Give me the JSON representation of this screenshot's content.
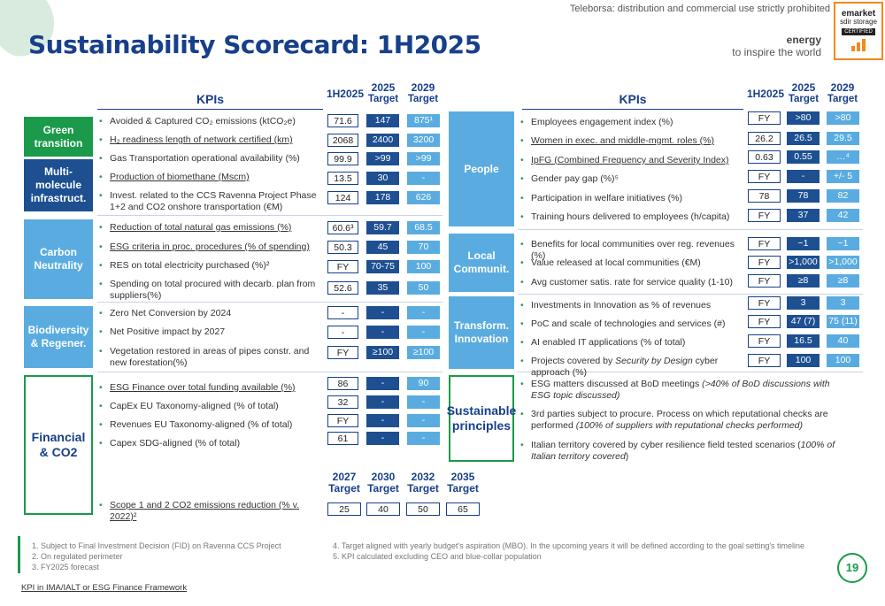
{
  "header": {
    "title": "Sustainability Scorecard: 1H2025",
    "notice": "Teleborsa: distribution and commercial use strictly prohibited",
    "brand_top": "energy",
    "brand_bottom": "to inspire the world",
    "badge": {
      "line1": "emarket",
      "line2": "sdir storage",
      "line3": "CERTIFIED"
    }
  },
  "columns": {
    "kpis": "KPIs",
    "c1": "1H2025",
    "c2a": "2025",
    "c2b": "Target",
    "c3a": "2029",
    "c3b": "Target"
  },
  "left": {
    "green_transition": {
      "label": "Green transition",
      "rows": [
        {
          "kpi": "Avoided & Captured CO₂ emissions (ktCO₂e)",
          "v1": "71.6",
          "v2": "147",
          "v3": "875¹"
        },
        {
          "kpi": "H₂ readiness length of network certified (km)",
          "v1": "2068",
          "v2": "2400",
          "v3": "3200"
        },
        {
          "kpi": "Gas Transportation operational availability (%)",
          "v1": "99.9",
          "v2": ">99",
          "v3": ">99"
        }
      ]
    },
    "multi_molecule": {
      "label": "Multi-molecule infrastruct.",
      "rows": [
        {
          "kpi": "Production of biomethane (Mscm)",
          "v1": "13.5",
          "v2": "30",
          "v3": "-"
        },
        {
          "kpi": "Invest. related to the CCS Ravenna Project Phase 1+2 and CO2 onshore transportation (€M)",
          "v1": "124",
          "v2": "178",
          "v3": "626"
        }
      ]
    },
    "carbon_neutrality": {
      "label": "Carbon Neutrality",
      "rows": [
        {
          "kpi": "Reduction of total natural gas emissions (%)",
          "v1": "60.6³",
          "v2": "59.7",
          "v3": "68.5"
        },
        {
          "kpi": "ESG criteria in proc. procedures (% of spending)",
          "v1": "50.3",
          "v2": "45",
          "v3": "70"
        },
        {
          "kpi": "RES on total electricity purchased (%)²",
          "v1": "FY",
          "v2": "70-75",
          "v3": "100"
        },
        {
          "kpi": "Spending on total procured with decarb. plan from suppliers(%)",
          "v1": "52.6",
          "v2": "35",
          "v3": "50"
        }
      ]
    },
    "biodiversity": {
      "label": "Biodiversity & Regener.",
      "rows": [
        {
          "kpi": "Zero Net Conversion by 2024",
          "v1": "-",
          "v2": "-",
          "v3": "-"
        },
        {
          "kpi": "Net Positive impact by 2027",
          "v1": "-",
          "v2": "-",
          "v3": "-"
        },
        {
          "kpi": "Vegetation restored in areas of pipes constr. and new forestation(%)",
          "v1": "FY",
          "v2": "≥100",
          "v3": "≥100"
        }
      ]
    },
    "financial": {
      "label": "Financial & CO2",
      "rows": [
        {
          "kpi": "ESG Finance over total funding available (%)",
          "v1": "86",
          "v2": "-",
          "v3": "90"
        },
        {
          "kpi": "CapEx EU Taxonomy-aligned (% of total)",
          "v1": "32",
          "v2": "-",
          "v3": "-"
        },
        {
          "kpi": "Revenues EU Taxonomy-aligned (% of total)",
          "v1": "FY",
          "v2": "-",
          "v3": "-"
        },
        {
          "kpi": "Capex SDG-aligned (% of total)",
          "v1": "61",
          "v2": "-",
          "v3": "-"
        }
      ],
      "targets_header": [
        {
          "year": "2027",
          "label": "Target"
        },
        {
          "year": "2030",
          "label": "Target"
        },
        {
          "year": "2032",
          "label": "Target"
        },
        {
          "year": "2035",
          "label": "Target"
        }
      ],
      "scope_kpi": "Scope 1 and 2 CO2 emissions reduction (% v. 2022)²",
      "scope_values": [
        "25",
        "40",
        "50",
        "65"
      ]
    }
  },
  "right": {
    "people": {
      "label": "People",
      "rows": [
        {
          "kpi": "Employees engagement index (%)",
          "v1": "FY",
          "v2": ">80",
          "v3": ">80"
        },
        {
          "kpi": "Women in exec. and middle-mgmt. roles (%)",
          "v1": "26.2",
          "v2": "26.5",
          "v3": "29.5"
        },
        {
          "kpi": "IpFG (Combined Frequency and Severity Index)",
          "v1": "0.63",
          "v2": "0.55",
          "v3": "…⁴"
        },
        {
          "kpi": "Gender pay gap (%)⁵",
          "v1": "FY",
          "v2": "-",
          "v3": "+/- 5"
        },
        {
          "kpi": "Participation in welfare initiatives (%)",
          "v1": "78",
          "v2": "78",
          "v3": "82"
        },
        {
          "kpi": "Training hours delivered to employees (h/capita)",
          "v1": "FY",
          "v2": "37",
          "v3": "42"
        }
      ]
    },
    "local": {
      "label": "Local Communit.",
      "rows": [
        {
          "kpi": "Benefits for local communities over reg. revenues (%)",
          "v1": "FY",
          "v2": "~1",
          "v3": "~1"
        },
        {
          "kpi": "Value released at local communities (€M)",
          "v1": "FY",
          "v2": ">1,000",
          "v3": ">1,000"
        },
        {
          "kpi": "Avg customer satis. rate for service quality (1-10)",
          "v1": "FY",
          "v2": "≥8",
          "v3": "≥8"
        }
      ]
    },
    "transform": {
      "label": "Transform. Innovation",
      "rows": [
        {
          "kpi": "Investments in Innovation as % of revenues",
          "v1": "FY",
          "v2": "3",
          "v3": "3"
        },
        {
          "kpi": "PoC and scale of technologies and services (#)",
          "v1": "FY",
          "v2": "47 (7)",
          "v3": "75 (11)"
        },
        {
          "kpi": "AI enabled IT applications (% of total)",
          "v1": "FY",
          "v2": "16.5",
          "v3": "40"
        },
        {
          "kpi_a": "Projects covered by ",
          "kpi_i": "Security by Design",
          "kpi_b": " cyber approach (%)",
          "v1": "FY",
          "v2": "100",
          "v3": "100"
        }
      ]
    },
    "principles": {
      "label": "Sustainable principles",
      "items": [
        {
          "a": "ESG matters discussed at BoD meetings ",
          "i": "(>40% of BoD discussions with ESG topic discussed)"
        },
        {
          "a": "3rd parties subject to procure. Process on which reputational checks are performed ",
          "i": "(100% of suppliers with reputational checks performed)"
        },
        {
          "a": "Italian territory covered by cyber resilience field tested scenarios (",
          "i": "100% of Italian territory covered",
          "b": ")"
        }
      ]
    }
  },
  "footnotes": {
    "left": [
      "1.   Subject to Final Investment Decision (FID) on Ravenna CCS Project",
      "2.   On regulated perimeter",
      "3.   FY2025 forecast"
    ],
    "right": [
      "4.  Target aligned with yearly budget's aspiration (MBO). In the upcoming years it will be defined according to the goal setting's timeline",
      "5.  KPI calculated excluding CEO and blue-collar population"
    ]
  },
  "page_number": "19",
  "bottom_link": "KPI in IMA/IALT or ESG Finance Framework"
}
